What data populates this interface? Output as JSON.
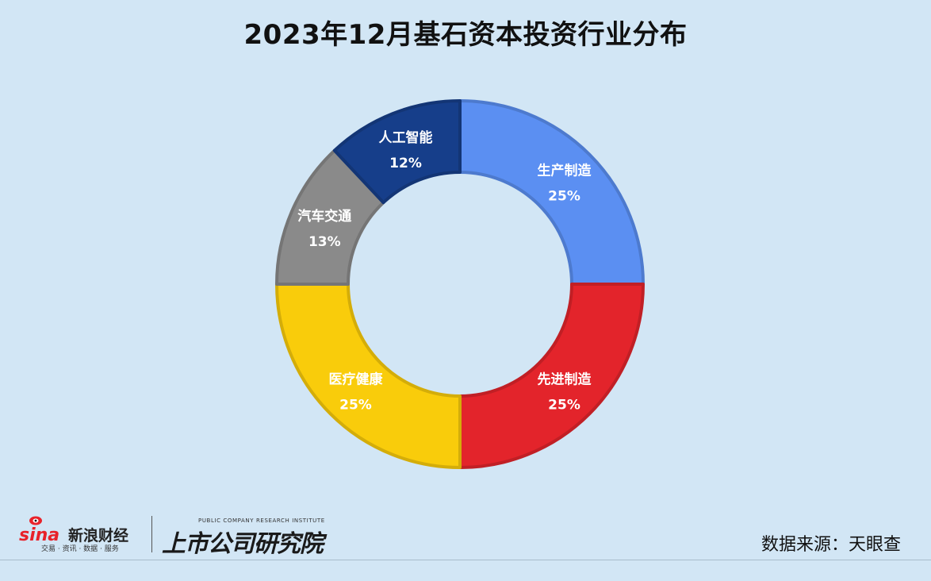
{
  "title": "2023年12月基石资本投资行业分布",
  "chart_data": {
    "type": "pie",
    "variant": "donut",
    "slices": [
      {
        "label": "生产制造",
        "value": 25,
        "pct_label": "25%",
        "color": "#5b8ff2"
      },
      {
        "label": "先进制造",
        "value": 25,
        "pct_label": "25%",
        "color": "#e3242b"
      },
      {
        "label": "医疗健康",
        "value": 25,
        "pct_label": "25%",
        "color": "#f9cc0b"
      },
      {
        "label": "汽车交通",
        "value": 13,
        "pct_label": "13%",
        "color": "#8a8a8a"
      },
      {
        "label": "人工智能",
        "value": 12,
        "pct_label": "12%",
        "color": "#163e8a"
      }
    ],
    "start_angle": "12 o'clock, clockwise"
  },
  "footer": {
    "sina_logo": "sina",
    "sina_name": "新浪财经",
    "sina_tagline": "交易 · 资讯 · 数据 · 服务",
    "institute_en": "PUBLIC COMPANY RESEARCH INSTITUTE",
    "institute_cn": "上市公司研究院",
    "source": "数据来源：天眼查"
  }
}
